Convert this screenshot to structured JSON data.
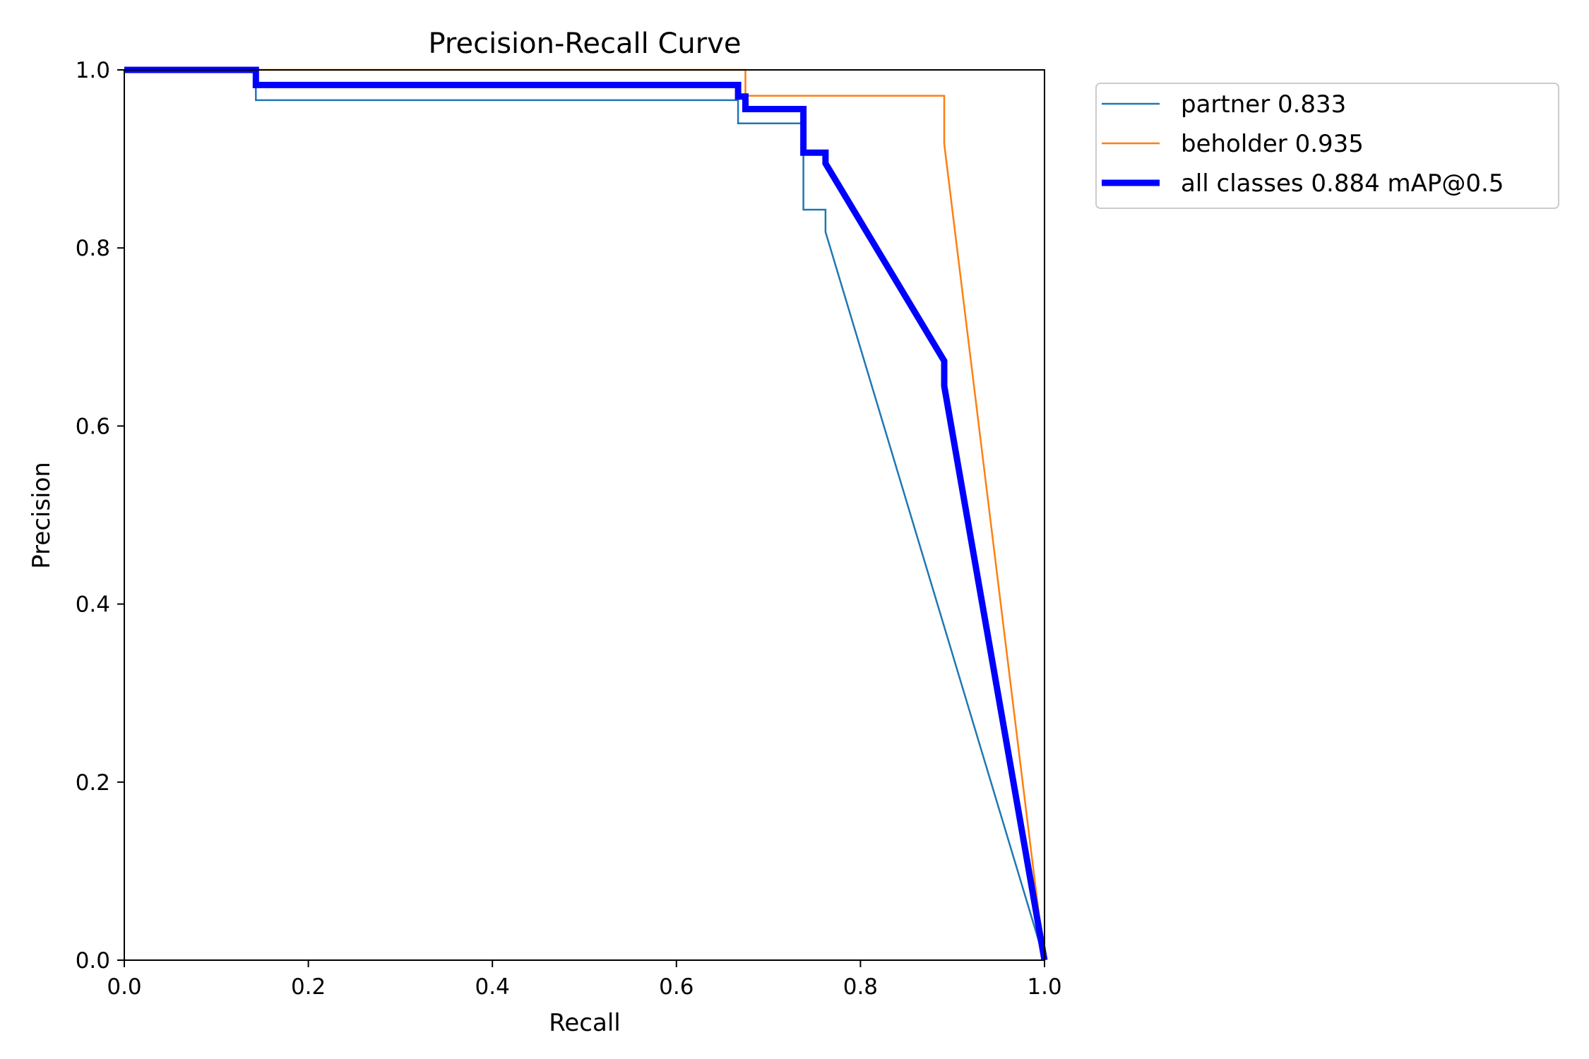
{
  "chart_data": {
    "type": "line",
    "title": "Precision-Recall Curve",
    "xlabel": "Recall",
    "ylabel": "Precision",
    "xlim": [
      0,
      1
    ],
    "ylim": [
      0,
      1
    ],
    "xticks": [
      "0.0",
      "0.2",
      "0.4",
      "0.6",
      "0.8",
      "1.0"
    ],
    "yticks": [
      "0.0",
      "0.2",
      "0.4",
      "0.6",
      "0.8",
      "1.0"
    ],
    "grid": false,
    "legend_position": "outside-top-right",
    "series": [
      {
        "name": "partner 0.833",
        "color": "#1f77b4",
        "width": "thin",
        "x": [
          0.0,
          0.143,
          0.143,
          0.667,
          0.667,
          0.738,
          0.738,
          0.762,
          0.762,
          1.0
        ],
        "y": [
          1.0,
          1.0,
          0.966,
          0.966,
          0.94,
          0.94,
          0.843,
          0.843,
          0.818,
          0.0
        ]
      },
      {
        "name": "beholder 0.935",
        "color": "#ff7f0e",
        "width": "thin",
        "x": [
          0.0,
          0.675,
          0.675,
          0.891,
          0.891,
          1.0
        ],
        "y": [
          1.0,
          1.0,
          0.971,
          0.971,
          0.917,
          0.0
        ]
      },
      {
        "name": "all classes 0.884 mAP@0.5",
        "color": "#0000ff",
        "width": "thick",
        "x": [
          0.0,
          0.143,
          0.143,
          0.667,
          0.667,
          0.675,
          0.675,
          0.738,
          0.738,
          0.762,
          0.762,
          0.891,
          0.891,
          1.0
        ],
        "y": [
          1.0,
          1.0,
          0.983,
          0.983,
          0.97,
          0.97,
          0.956,
          0.956,
          0.907,
          0.907,
          0.895,
          0.673,
          0.645,
          0.0
        ]
      }
    ]
  }
}
